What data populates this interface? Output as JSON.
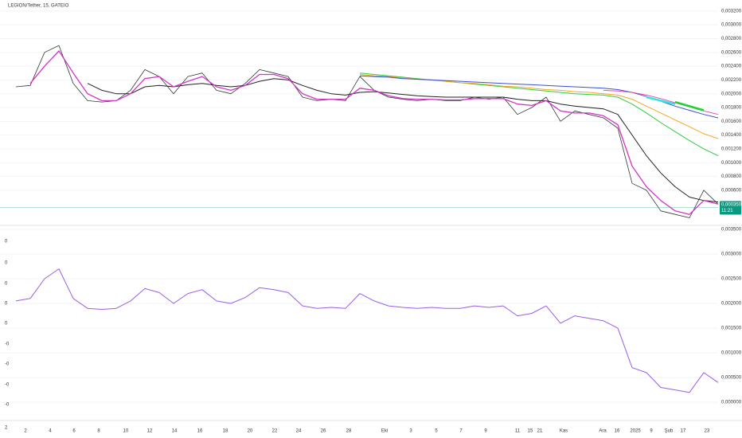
{
  "chart_data": [
    {
      "type": "line",
      "title": "LEGION/Tether, 15, GATEIO",
      "ylim": [
        9e-05,
        0.00336
      ],
      "yticks": [
        {
          "value": 0.0032,
          "label": "0,003200"
        },
        {
          "value": 0.003,
          "label": "0,003000"
        },
        {
          "value": 0.0028,
          "label": "0,002800"
        },
        {
          "value": 0.0026,
          "label": "0,002600"
        },
        {
          "value": 0.0024,
          "label": "0,002400"
        },
        {
          "value": 0.0022,
          "label": "0,002200"
        },
        {
          "value": 0.002,
          "label": "0,002000"
        },
        {
          "value": 0.0018,
          "label": "0,001800"
        },
        {
          "value": 0.0016,
          "label": "0,001600"
        },
        {
          "value": 0.0014,
          "label": "0,001400"
        },
        {
          "value": 0.0012,
          "label": "0,001200"
        },
        {
          "value": 0.001,
          "label": "0,001000"
        },
        {
          "value": 0.0008,
          "label": "0,000800"
        },
        {
          "value": 0.0006,
          "label": "0,000600"
        }
      ],
      "grid": true,
      "current_price": {
        "value": 0.00035,
        "label": "0,000350",
        "time": "11:21",
        "color": "#089981"
      },
      "series": [
        {
          "color": "#2e3b33",
          "width": 0.8,
          "values": [
            0.0021,
            0.00212,
            0.0026,
            0.0027,
            0.00215,
            0.0019,
            0.00188,
            0.0019,
            0.00205,
            0.00235,
            0.00225,
            0.002,
            0.00225,
            0.0023,
            0.00205,
            0.002,
            0.00215,
            0.00235,
            0.0023,
            0.00225,
            0.00195,
            0.0019,
            0.00192,
            0.0019,
            0.00225,
            0.00205,
            0.00195,
            0.00192,
            0.0019,
            0.00192,
            0.0019,
            0.0019,
            0.00195,
            0.00192,
            0.00195,
            0.0017,
            0.0018,
            0.00195,
            0.0016,
            0.00175,
            0.0017,
            0.00165,
            0.0015,
            0.0007,
            0.0006,
            0.0003,
            0.00025,
            0.0002,
            0.0006,
            0.0004
          ]
        },
        {
          "color": "#2ecc40",
          "width": 1,
          "values": [
            null,
            null,
            null,
            null,
            null,
            null,
            null,
            null,
            null,
            null,
            null,
            null,
            null,
            null,
            null,
            null,
            null,
            null,
            null,
            null,
            null,
            null,
            null,
            null,
            0.0023,
            0.00228,
            0.00226,
            0.00224,
            0.00222,
            0.0022,
            0.00218,
            0.00216,
            0.00214,
            0.00212,
            0.0021,
            0.00208,
            0.00206,
            0.00204,
            0.00202,
            0.002,
            0.00199,
            0.00198,
            0.00195,
            0.00185,
            0.00172,
            0.00158,
            0.00145,
            0.00132,
            0.0012,
            0.0011
          ]
        },
        {
          "color": "#f5a623",
          "width": 1,
          "values": [
            null,
            null,
            null,
            null,
            null,
            null,
            null,
            null,
            null,
            null,
            null,
            null,
            null,
            null,
            null,
            null,
            null,
            null,
            null,
            null,
            null,
            null,
            null,
            null,
            0.00228,
            0.00226,
            0.00225,
            0.00223,
            0.00221,
            0.0022,
            0.00218,
            0.00216,
            0.00215,
            0.00213,
            0.00211,
            0.0021,
            0.00208,
            0.00206,
            0.00205,
            0.00203,
            0.00202,
            0.002,
            0.00198,
            0.00192,
            0.00182,
            0.00172,
            0.00162,
            0.00152,
            0.00142,
            0.00135
          ]
        },
        {
          "color": "#3b4fd6",
          "width": 1,
          "values": [
            null,
            null,
            null,
            null,
            null,
            null,
            null,
            null,
            null,
            null,
            null,
            null,
            null,
            null,
            null,
            null,
            null,
            null,
            null,
            null,
            null,
            null,
            null,
            null,
            0.00226,
            0.00225,
            0.00224,
            0.00222,
            0.00221,
            0.0022,
            0.00219,
            0.00218,
            0.00217,
            0.00216,
            0.00215,
            0.00214,
            0.00213,
            0.00212,
            0.00211,
            0.0021,
            0.00209,
            0.00208,
            0.00206,
            0.00202,
            0.00196,
            0.00189,
            0.00182,
            0.00176,
            0.0017,
            0.00165
          ]
        },
        {
          "color": "#e84fa8",
          "width": 1,
          "values": [
            null,
            null,
            null,
            null,
            null,
            null,
            null,
            null,
            null,
            null,
            null,
            null,
            null,
            null,
            null,
            null,
            null,
            null,
            null,
            null,
            null,
            null,
            null,
            null,
            null,
            null,
            null,
            null,
            null,
            null,
            null,
            null,
            null,
            null,
            null,
            null,
            null,
            null,
            null,
            null,
            null,
            0.00205,
            0.00204,
            0.00202,
            0.00198,
            0.00193,
            0.00187,
            0.00181,
            0.00175,
            0.0017
          ]
        },
        {
          "color": "#2ee6e6",
          "width": 2.5,
          "values": [
            null,
            null,
            null,
            null,
            null,
            null,
            null,
            null,
            null,
            null,
            null,
            null,
            null,
            null,
            null,
            null,
            null,
            null,
            null,
            null,
            null,
            null,
            null,
            null,
            null,
            null,
            null,
            null,
            null,
            null,
            null,
            null,
            null,
            null,
            null,
            null,
            null,
            null,
            null,
            null,
            null,
            null,
            null,
            null,
            0.00195,
            0.0019,
            0.00185,
            null,
            null,
            null
          ]
        },
        {
          "color": "#19d62a",
          "width": 2.5,
          "values": [
            null,
            null,
            null,
            null,
            null,
            null,
            null,
            null,
            null,
            null,
            null,
            null,
            null,
            null,
            null,
            null,
            null,
            null,
            null,
            null,
            null,
            null,
            null,
            null,
            null,
            null,
            null,
            null,
            null,
            null,
            null,
            null,
            null,
            null,
            null,
            null,
            null,
            null,
            null,
            null,
            null,
            null,
            null,
            null,
            null,
            null,
            0.00188,
            0.00182,
            0.00176,
            null
          ]
        },
        {
          "color": "#222222",
          "width": 1,
          "values": [
            null,
            null,
            null,
            null,
            null,
            0.00215,
            0.00205,
            0.002,
            0.002,
            0.0021,
            0.00212,
            0.0021,
            0.00213,
            0.00215,
            0.00212,
            0.0021,
            0.00212,
            0.00218,
            0.00222,
            0.0022,
            0.00212,
            0.00205,
            0.002,
            0.00198,
            0.00202,
            0.00203,
            0.00201,
            0.00199,
            0.00197,
            0.00196,
            0.00195,
            0.00195,
            0.00195,
            0.00195,
            0.00195,
            0.00192,
            0.0019,
            0.0019,
            0.00185,
            0.00182,
            0.0018,
            0.00178,
            0.0017,
            0.0014,
            0.0011,
            0.00085,
            0.00065,
            0.0005,
            0.00045,
            0.00043
          ]
        },
        {
          "color": "#d633c9",
          "width": 1.3,
          "values": [
            null,
            0.00215,
            0.0024,
            0.00262,
            0.0023,
            0.002,
            0.0019,
            0.0019,
            0.002,
            0.00222,
            0.00225,
            0.0021,
            0.00218,
            0.00225,
            0.0021,
            0.00205,
            0.00212,
            0.00228,
            0.00228,
            0.00222,
            0.002,
            0.00192,
            0.00192,
            0.00192,
            0.00208,
            0.00205,
            0.00197,
            0.00193,
            0.00192,
            0.00192,
            0.00191,
            0.00191,
            0.00193,
            0.00193,
            0.00193,
            0.00185,
            0.00183,
            0.0019,
            0.00175,
            0.00172,
            0.00172,
            0.00168,
            0.00155,
            0.00095,
            0.00065,
            0.00045,
            0.0003,
            0.00025,
            0.00045,
            0.0004
          ]
        }
      ]
    },
    {
      "type": "line",
      "ylim": [
        -0.00032,
        0.00358
      ],
      "yticks": [
        {
          "value": 0.0035,
          "label": "0,003500"
        },
        {
          "value": 0.003,
          "label": "0,003000"
        },
        {
          "value": 0.0025,
          "label": "0,002500"
        },
        {
          "value": 0.002,
          "label": "0,002000"
        },
        {
          "value": 0.0015,
          "label": "0,001500"
        },
        {
          "value": 0.001,
          "label": "0,001000"
        },
        {
          "value": 0.0005,
          "label": "0,000500"
        },
        {
          "value": 0,
          "label": "0,000000"
        }
      ],
      "grid": true,
      "left_axis_labels": [
        "0",
        "0",
        "0",
        "0",
        "0",
        "-0",
        "-0",
        "-0",
        "-0",
        "2"
      ],
      "x_axis_labels": [
        "2",
        "4",
        "6",
        "8",
        "10",
        "12",
        "14",
        "16",
        "18",
        "20",
        "22",
        "24",
        "26",
        "28",
        "Eki",
        "3",
        "5",
        "7",
        "9",
        "11",
        "15",
        "21",
        "Kas",
        "Ara",
        "16",
        "2025",
        "9",
        "Şub",
        "17",
        "23"
      ],
      "series": [
        {
          "color": "#9b5de5",
          "width": 1,
          "values": [
            0.00205,
            0.0021,
            0.0025,
            0.0027,
            0.0021,
            0.0019,
            0.00188,
            0.0019,
            0.00205,
            0.0023,
            0.00222,
            0.002,
            0.0022,
            0.00228,
            0.00205,
            0.002,
            0.00212,
            0.00232,
            0.00228,
            0.00222,
            0.00195,
            0.0019,
            0.00192,
            0.0019,
            0.0022,
            0.00205,
            0.00195,
            0.00192,
            0.0019,
            0.00192,
            0.0019,
            0.0019,
            0.00195,
            0.00192,
            0.00195,
            0.00175,
            0.0018,
            0.00195,
            0.0016,
            0.00175,
            0.0017,
            0.00165,
            0.0015,
            0.0007,
            0.0006,
            0.0003,
            0.00025,
            0.0002,
            0.0006,
            0.0004
          ]
        }
      ]
    }
  ]
}
